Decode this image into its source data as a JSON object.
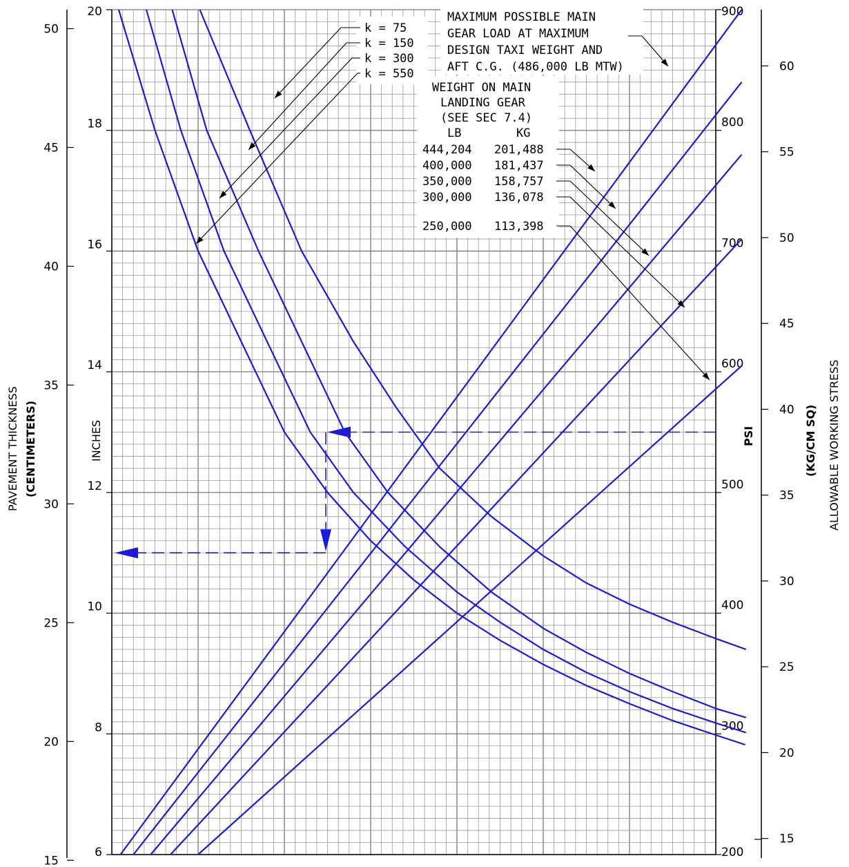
{
  "chart_data": {
    "type": "line",
    "axes": {
      "x_psi": {
        "min": 200,
        "max": 900,
        "label": "PSI",
        "ticks": [
          200,
          300,
          400,
          500,
          600,
          700,
          800,
          900
        ]
      },
      "y_inches": {
        "min": 6,
        "max": 20,
        "label": "INCHES",
        "ticks": [
          6,
          8,
          10,
          12,
          14,
          16,
          18,
          20
        ]
      },
      "left_cm": {
        "label_line1": "PAVEMENT THICKNESS",
        "label_line2": "(CENTIMETERS)",
        "ticks": [
          15,
          20,
          25,
          30,
          35,
          40,
          45,
          50
        ]
      },
      "right_kgcm2": {
        "label_line1": "ALLOWABLE WORKING STRESS",
        "label_line2": "(KG/CM SQ)",
        "ticks": [
          15,
          20,
          25,
          30,
          35,
          40,
          45,
          50,
          55,
          60
        ]
      }
    },
    "grid": true,
    "note_max_load": [
      "MAXIMUM POSSIBLE MAIN",
      "GEAR LOAD AT MAXIMUM",
      "DESIGN TAXI WEIGHT AND",
      "AFT C.G. (486,000 LB MTW)"
    ],
    "weight_header": [
      "WEIGHT ON MAIN",
      "LANDING GEAR",
      "(SEE SEC 7.4)"
    ],
    "weight_cols": [
      "LB",
      "KG"
    ],
    "weights": [
      {
        "lb": "444,204",
        "kg": "201,488"
      },
      {
        "lb": "400,000",
        "kg": "181,437"
      },
      {
        "lb": "350,000",
        "kg": "158,757"
      },
      {
        "lb": "300,000",
        "kg": "136,078"
      },
      {
        "lb": "250,000",
        "kg": "113,398"
      }
    ],
    "k_labels": [
      "k  =  75",
      "k  =  150",
      "k  =  300",
      "k  =  550"
    ],
    "series_k": [
      {
        "name": "k = 75",
        "points": [
          [
            208,
            20
          ],
          [
            250,
            18
          ],
          [
            300,
            16
          ],
          [
            350,
            14.5
          ],
          [
            400,
            13
          ],
          [
            450,
            12
          ],
          [
            500,
            11.2
          ],
          [
            550,
            10.55
          ],
          [
            600,
            10
          ],
          [
            650,
            9.55
          ],
          [
            700,
            9.15
          ],
          [
            750,
            8.8
          ],
          [
            800,
            8.5
          ],
          [
            850,
            8.22
          ],
          [
            900,
            7.98
          ],
          [
            934,
            7.82
          ]
        ]
      },
      {
        "name": "k = 150",
        "points": [
          [
            240,
            20
          ],
          [
            280,
            18
          ],
          [
            330,
            16
          ],
          [
            380,
            14.5
          ],
          [
            430,
            13
          ],
          [
            480,
            12
          ],
          [
            540,
            11.1
          ],
          [
            600,
            10.35
          ],
          [
            650,
            9.85
          ],
          [
            700,
            9.4
          ],
          [
            750,
            9.02
          ],
          [
            800,
            8.7
          ],
          [
            850,
            8.42
          ],
          [
            900,
            8.18
          ],
          [
            935,
            8.02
          ]
        ]
      },
      {
        "name": "k = 300",
        "points": [
          [
            270,
            20
          ],
          [
            310,
            18
          ],
          [
            370,
            16
          ],
          [
            420,
            14.5
          ],
          [
            470,
            13
          ],
          [
            520,
            12
          ],
          [
            580,
            11.1
          ],
          [
            640,
            10.35
          ],
          [
            700,
            9.75
          ],
          [
            750,
            9.35
          ],
          [
            800,
            9.0
          ],
          [
            850,
            8.7
          ],
          [
            900,
            8.42
          ],
          [
            935,
            8.27
          ]
        ]
      },
      {
        "name": "k = 550",
        "points": [
          [
            302,
            20
          ],
          [
            360,
            18
          ],
          [
            420,
            16
          ],
          [
            480,
            14.5
          ],
          [
            530,
            13.4
          ],
          [
            580,
            12.4
          ],
          [
            640,
            11.6
          ],
          [
            700,
            10.95
          ],
          [
            750,
            10.5
          ],
          [
            800,
            10.15
          ],
          [
            850,
            9.85
          ],
          [
            900,
            9.58
          ],
          [
            935,
            9.4
          ]
        ]
      }
    ],
    "series_load": [
      {
        "name": "250,000 LB",
        "points": [
          [
            300,
            6
          ],
          [
            930,
            14.1
          ]
        ]
      },
      {
        "name": "300,000 LB",
        "points": [
          [
            268,
            6
          ],
          [
            930,
            16.2
          ]
        ]
      },
      {
        "name": "350,000 LB",
        "points": [
          [
            245,
            6
          ],
          [
            930,
            17.6
          ]
        ]
      },
      {
        "name": "400,000 LB",
        "points": [
          [
            225,
            6
          ],
          [
            930,
            18.8
          ]
        ]
      },
      {
        "name": "444,204 LB",
        "points": [
          [
            210,
            6
          ],
          [
            930,
            20
          ]
        ]
      }
    ],
    "example_path": {
      "stress_psi_start": 931,
      "stress_psi_turn": 448,
      "thickness_in": 13.0,
      "thickness_result_in": 11.0,
      "x_end_psi": 200
    }
  }
}
